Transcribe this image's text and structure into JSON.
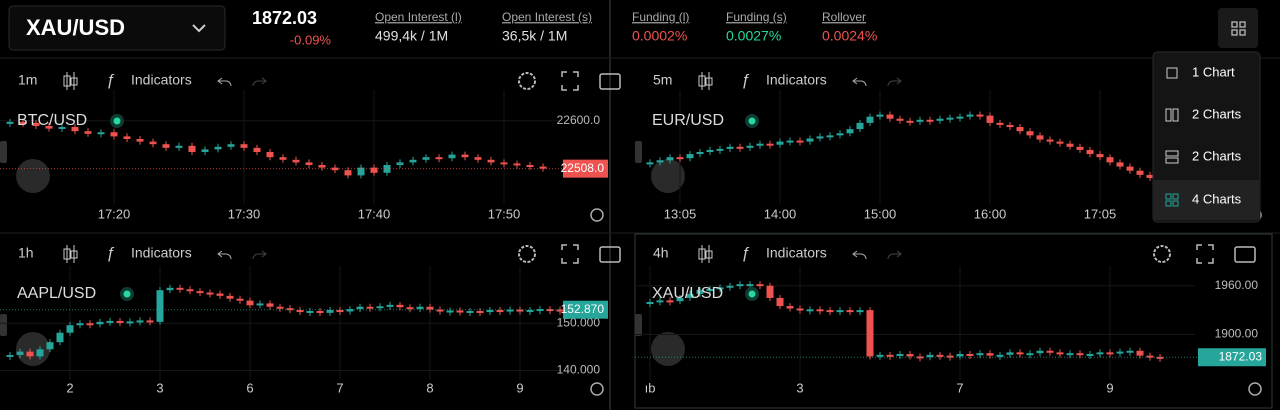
{
  "header": {
    "symbol": "XAU/USD",
    "price": "1872.03",
    "change": "-0.09%",
    "stats": [
      {
        "label": "Open Interest (l)",
        "value": "499,4k / 1M",
        "color": "#e0e0e0"
      },
      {
        "label": "Open Interest (s)",
        "value": "36,5k / 1M",
        "color": "#e0e0e0"
      },
      {
        "label": "Funding (l)",
        "value": "0.0002%",
        "color": "#ef5350"
      },
      {
        "label": "Funding (s)",
        "value": "0.0027%",
        "color": "#26d9a0"
      },
      {
        "label": "Rollover",
        "value": "0.0024%",
        "color": "#ef5350"
      }
    ]
  },
  "menu": {
    "items": [
      "1 Chart",
      "2 Charts",
      "2 Charts",
      "4 Charts"
    ]
  },
  "panels": [
    {
      "type": "candlestick",
      "interval": "1m",
      "indicators": "Indicators",
      "symbol": "BTC/USD",
      "ylim": [
        22440,
        22640
      ],
      "yticks": [
        {
          "value": 22600,
          "label": "22600.0"
        }
      ],
      "price": {
        "value": 22508,
        "label": "22508.0"
      },
      "price_color": "#ef5350",
      "xticks": [
        {
          "value": 8,
          "label": "17:20"
        },
        {
          "value": 18,
          "label": "17:30"
        },
        {
          "value": 28,
          "label": "17:40"
        },
        {
          "value": 38,
          "label": "17:50"
        }
      ],
      "values": [
        22598,
        22596,
        22590,
        22585,
        22588,
        22580,
        22575,
        22578,
        22570,
        22565,
        22560,
        22555,
        22548,
        22552,
        22540,
        22545,
        22550,
        22555,
        22548,
        22540,
        22530,
        22525,
        22520,
        22515,
        22510,
        22505,
        22495,
        22510,
        22500,
        22515,
        22520,
        22525,
        22530,
        22528,
        22535,
        22530,
        22525,
        22520,
        22518,
        22515,
        22512,
        22508
      ]
    },
    {
      "type": "candlestick",
      "interval": "5m",
      "indicators": "Indicators",
      "symbol": "EUR/USD",
      "ylim": [
        0,
        100
      ],
      "yticks": [],
      "price": null,
      "price_color": "#ef5350",
      "xticks": [
        {
          "value": 3,
          "label": "13:05"
        },
        {
          "value": 13,
          "label": "14:00"
        },
        {
          "value": 23,
          "label": "15:00"
        },
        {
          "value": 34,
          "label": "16:00"
        },
        {
          "value": 45,
          "label": "17:05"
        }
      ],
      "values": [
        40,
        42,
        45,
        44,
        48,
        50,
        52,
        53,
        55,
        54,
        56,
        58,
        57,
        60,
        61,
        60,
        63,
        65,
        66,
        68,
        72,
        78,
        84,
        86,
        82,
        80,
        79,
        81,
        80,
        82,
        83,
        84,
        86,
        85,
        78,
        76,
        74,
        70,
        66,
        62,
        60,
        58,
        55,
        52,
        48,
        45,
        40,
        36,
        32,
        28,
        25
      ]
    },
    {
      "type": "candlestick",
      "interval": "1h",
      "indicators": "Indicators",
      "symbol": "AAPL/USD",
      "ylim": [
        138,
        160
      ],
      "yticks": [
        {
          "value": 150,
          "label": "150.000"
        },
        {
          "value": 140,
          "label": "140.000"
        }
      ],
      "price": {
        "value": 152.87,
        "label": "152.870"
      },
      "price_color": "#26a69a",
      "xticks": [
        {
          "value": 6,
          "label": "2"
        },
        {
          "value": 15,
          "label": "3"
        },
        {
          "value": 24,
          "label": "6"
        },
        {
          "value": 33,
          "label": "7"
        },
        {
          "value": 42,
          "label": "8"
        },
        {
          "value": 51,
          "label": "9"
        }
      ],
      "values": [
        143.3,
        144,
        143,
        144.5,
        146,
        148,
        149.6,
        150,
        149.8,
        150.3,
        150.5,
        150.2,
        150.4,
        150.6,
        150.3,
        157,
        157.5,
        157.2,
        156.8,
        156.5,
        156.3,
        155.8,
        155.2,
        154.8,
        153.8,
        154.2,
        153.5,
        153.2,
        152.8,
        152.4,
        152.6,
        152.2,
        152.8,
        152.5,
        153,
        153.5,
        153.2,
        153.6,
        153.9,
        153.4,
        153,
        153.5,
        152.9,
        152.5,
        152.7,
        152.3,
        152.6,
        152.4,
        152.8,
        152.6,
        152.9,
        152.7,
        152.8,
        153,
        152.9,
        152.87
      ]
    },
    {
      "type": "candlestick",
      "interval": "4h",
      "indicators": "Indicators",
      "symbol": "XAU/USD",
      "ylim": [
        1844,
        1972
      ],
      "yticks": [
        {
          "value": 1960,
          "label": "1960.00"
        },
        {
          "value": 1900,
          "label": "1900.00"
        }
      ],
      "price": {
        "value": 1872.03,
        "label": "1872.03"
      },
      "price_color": "#26a69a",
      "xticks": [
        {
          "value": 0,
          "label": "ıb"
        },
        {
          "value": 15,
          "label": "3"
        },
        {
          "value": 31,
          "label": "7"
        },
        {
          "value": 46,
          "label": "9"
        }
      ],
      "values": [
        1940,
        1942,
        1941,
        1945,
        1950,
        1955,
        1956,
        1958,
        1960,
        1962,
        1962,
        1960,
        1945,
        1935,
        1932,
        1930,
        1931,
        1930,
        1929,
        1930,
        1928,
        1930,
        1873,
        1875,
        1874,
        1876,
        1873,
        1872,
        1875,
        1874,
        1873,
        1876,
        1875,
        1877,
        1874,
        1875,
        1878,
        1876,
        1877,
        1880,
        1878,
        1876,
        1877,
        1875,
        1876,
        1878,
        1877,
        1879,
        1880,
        1874,
        1872.5,
        1872.03
      ]
    }
  ]
}
